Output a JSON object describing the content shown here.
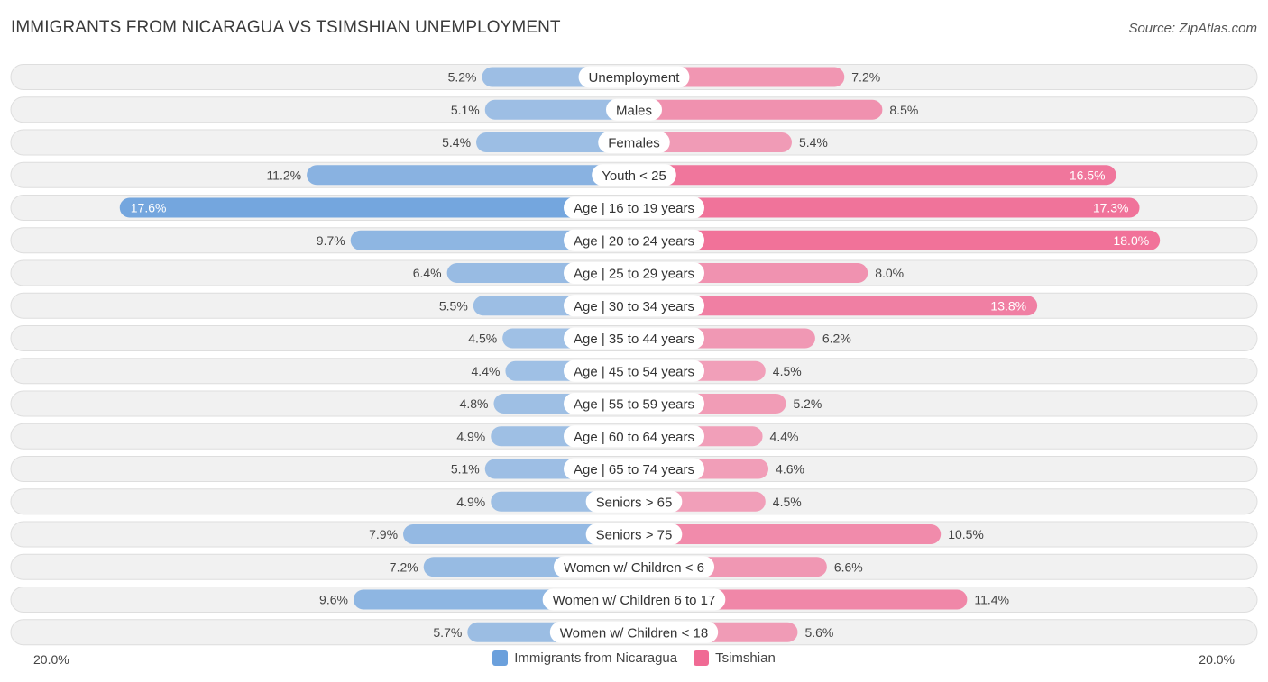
{
  "title": "IMMIGRANTS FROM NICARAGUA VS TSIMSHIAN UNEMPLOYMENT",
  "source": "Source: ZipAtlas.com",
  "axis": {
    "left_label": "20.0%",
    "right_label": "20.0%"
  },
  "legend": {
    "left": {
      "label": "Immigrants from Nicaragua",
      "color": "#6ba0dc"
    },
    "right": {
      "label": "Tsimshian",
      "color": "#f06a94"
    }
  },
  "chart_data": {
    "type": "bar",
    "orientation": "horizontal-diverging",
    "title": "IMMIGRANTS FROM NICARAGUA VS TSIMSHIAN UNEMPLOYMENT",
    "unit": "%",
    "xlim": [
      -20,
      20
    ],
    "categories": [
      "Unemployment",
      "Males",
      "Females",
      "Youth < 25",
      "Age | 16 to 19 years",
      "Age | 20 to 24 years",
      "Age | 25 to 29 years",
      "Age | 30 to 34 years",
      "Age | 35 to 44 years",
      "Age | 45 to 54 years",
      "Age | 55 to 59 years",
      "Age | 60 to 64 years",
      "Age | 65 to 74 years",
      "Seniors > 65",
      "Seniors > 75",
      "Women w/ Children < 6",
      "Women w/ Children 6 to 17",
      "Women w/ Children < 18"
    ],
    "series": [
      {
        "name": "Immigrants from Nicaragua",
        "values": [
          5.2,
          5.1,
          5.4,
          11.2,
          17.6,
          9.7,
          6.4,
          5.5,
          4.5,
          4.4,
          4.8,
          4.9,
          5.1,
          4.9,
          7.9,
          7.2,
          9.6,
          5.7
        ],
        "labels": [
          "5.2%",
          "5.1%",
          "5.4%",
          "11.2%",
          "17.6%",
          "9.7%",
          "6.4%",
          "5.5%",
          "4.5%",
          "4.4%",
          "4.8%",
          "4.9%",
          "5.1%",
          "4.9%",
          "7.9%",
          "7.2%",
          "9.6%",
          "5.7%"
        ]
      },
      {
        "name": "Tsimshian",
        "values": [
          7.2,
          8.5,
          5.4,
          16.5,
          17.3,
          18.0,
          8.0,
          13.8,
          6.2,
          4.5,
          5.2,
          4.4,
          4.6,
          4.5,
          10.5,
          6.6,
          11.4,
          5.6
        ],
        "labels": [
          "7.2%",
          "8.5%",
          "5.4%",
          "16.5%",
          "17.3%",
          "18.0%",
          "8.0%",
          "13.8%",
          "6.2%",
          "4.5%",
          "5.2%",
          "4.4%",
          "4.6%",
          "4.5%",
          "10.5%",
          "6.6%",
          "11.4%",
          "5.6%"
        ]
      }
    ]
  }
}
